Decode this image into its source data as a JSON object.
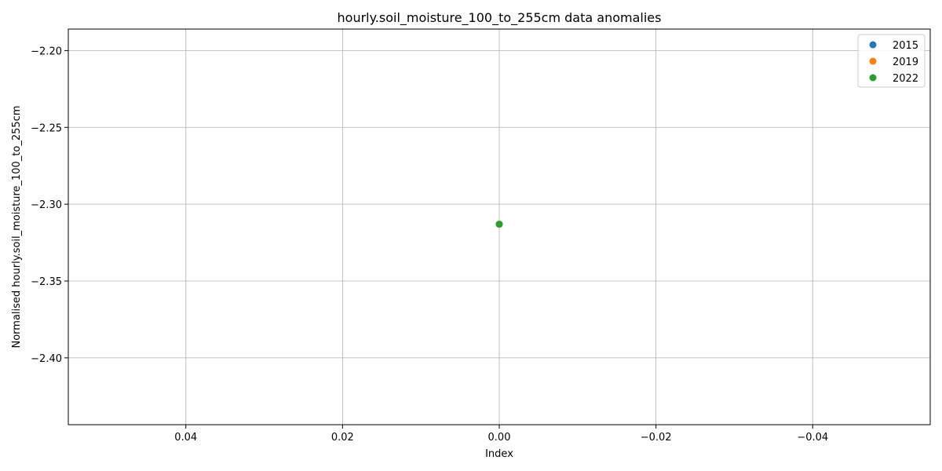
{
  "chart_data": {
    "type": "scatter",
    "title": "hourly.soil_moisture_100_to_255cm data anomalies",
    "xlabel": "Index",
    "ylabel": "Normalised hourly.soil_moisture_100_to_255cm",
    "x_inverted": true,
    "xlim": [
      0.055,
      -0.055
    ],
    "ylim": [
      -2.4435,
      -2.186
    ],
    "x_ticks": [
      {
        "value": 0.04,
        "label": "0.04"
      },
      {
        "value": 0.02,
        "label": "0.02"
      },
      {
        "value": 0.0,
        "label": "0.00"
      },
      {
        "value": -0.02,
        "label": "−0.02"
      },
      {
        "value": -0.04,
        "label": "−0.04"
      }
    ],
    "y_ticks": [
      {
        "value": -2.2,
        "label": "−2.20"
      },
      {
        "value": -2.25,
        "label": "−2.25"
      },
      {
        "value": -2.3,
        "label": "−2.30"
      },
      {
        "value": -2.35,
        "label": "−2.35"
      },
      {
        "value": -2.4,
        "label": "−2.40"
      }
    ],
    "grid": true,
    "legend_position": "top-right",
    "series": [
      {
        "name": "2015",
        "color": "#1f77b4",
        "points": [
          {
            "x": 0,
            "y": -2.313
          }
        ]
      },
      {
        "name": "2019",
        "color": "#ff7f0e",
        "points": [
          {
            "x": 0,
            "y": -2.313
          }
        ]
      },
      {
        "name": "2022",
        "color": "#2ca02c",
        "points": [
          {
            "x": 0,
            "y": -2.313
          }
        ]
      }
    ]
  }
}
